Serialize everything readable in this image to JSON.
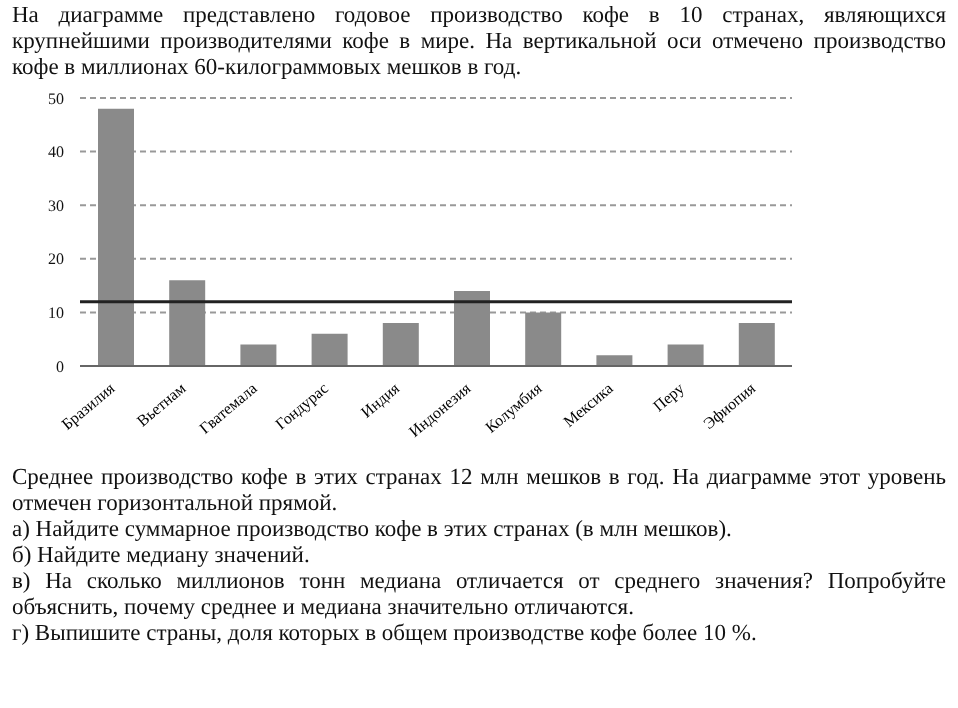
{
  "chart_data": {
    "type": "bar",
    "title": "На диаграмме представлено годовое производство кофе в 10 странах, являющихся крупнейшими производителями кофе в мире. На вертикальной оси отмечено производство кофе в миллионах 60-килограммовых мешков в год.",
    "categories": [
      "Бразилия",
      "Вьетнам",
      "Гватемала",
      "Гондурас",
      "Индия",
      "Индонезия",
      "Колумбия",
      "Мексика",
      "Перу",
      "Эфиопия"
    ],
    "values": [
      48,
      16,
      4,
      6,
      8,
      14,
      10,
      2,
      4,
      8
    ],
    "color": "#8a8a8a",
    "ylim": [
      0,
      50
    ],
    "yticks": [
      0,
      10,
      20,
      30,
      40,
      50
    ],
    "grid": "y",
    "ref_lines": [
      {
        "axis": "y",
        "value": 12,
        "color": "#222222"
      }
    ],
    "annotations": [
      "Среднее производство кофе в этих странах 12 млн мешков в год. На диаграмме этот уровень отмечен горизонтальной прямой.",
      "а) Найдите суммарное производство кофе в этих странах (в млн мешков).",
      "б) Найдите медиану значений.",
      "в) На сколько миллионов тонн медиана отличается от среднего значения? Попробуйте объяснить, почему среднее и медиана значительно отличаются.",
      "г) Выпишите страны, доля которых в общем производстве кофе более 10 %."
    ]
  }
}
